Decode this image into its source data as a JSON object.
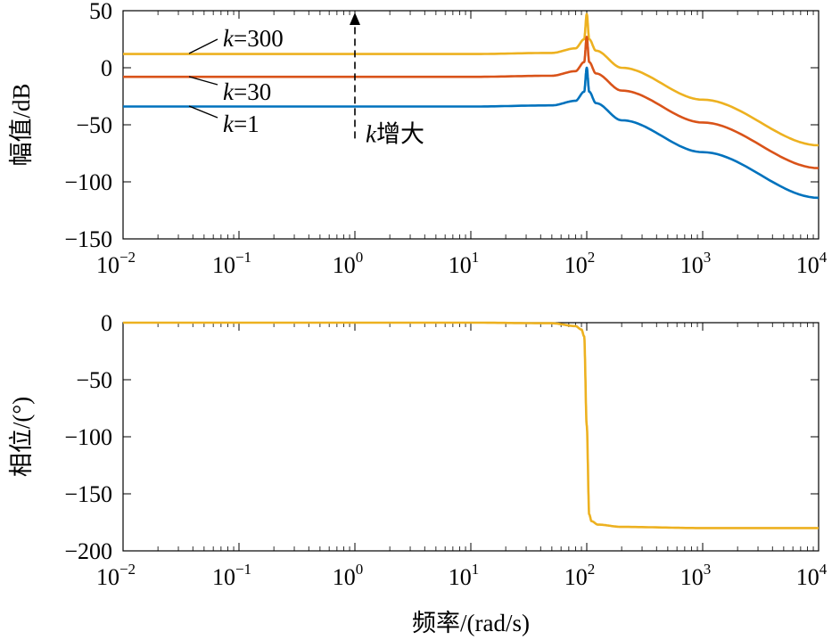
{
  "chart_data": [
    {
      "type": "line",
      "panel": "magnitude",
      "ylabel": "幅值/dB",
      "xscale": "log",
      "xlim": [
        0.01,
        10000
      ],
      "ylim": [
        -150,
        50
      ],
      "xticks": [
        {
          "value": 0.01,
          "base": "10",
          "exp": "−2"
        },
        {
          "value": 0.1,
          "base": "10",
          "exp": "−1"
        },
        {
          "value": 1,
          "base": "10",
          "exp": "0"
        },
        {
          "value": 10,
          "base": "10",
          "exp": "1"
        },
        {
          "value": 100,
          "base": "10",
          "exp": "2"
        },
        {
          "value": 1000,
          "base": "10",
          "exp": "3"
        },
        {
          "value": 10000,
          "base": "10",
          "exp": "4"
        }
      ],
      "yticks": [
        {
          "value": 50,
          "label": "50"
        },
        {
          "value": 0,
          "label": "0"
        },
        {
          "value": -50,
          "label": "−50"
        },
        {
          "value": -100,
          "label": "−100"
        },
        {
          "value": -150,
          "label": "−150"
        }
      ],
      "resonance_frequency": 100,
      "series": [
        {
          "name": "k=300",
          "k_symbol": "k",
          "k_value": "=300",
          "color": "#EDB120",
          "x": [
            0.01,
            1,
            10,
            50,
            80,
            95,
            100,
            105,
            120,
            200,
            1000,
            10000
          ],
          "y": [
            12,
            12,
            12,
            13,
            17,
            25,
            47,
            25,
            15,
            0,
            -28,
            -68
          ]
        },
        {
          "name": "k=30",
          "k_symbol": "k",
          "k_value": "=30",
          "color": "#D95319",
          "x": [
            0.01,
            1,
            10,
            50,
            80,
            95,
            100,
            105,
            120,
            200,
            1000,
            10000
          ],
          "y": [
            -8,
            -8,
            -8,
            -7,
            -3,
            5,
            27,
            5,
            -5,
            -20,
            -48,
            -88
          ]
        },
        {
          "name": "k=1",
          "k_symbol": "k",
          "k_value": "=1",
          "color": "#0072BD",
          "x": [
            0.01,
            1,
            10,
            50,
            80,
            95,
            100,
            105,
            120,
            200,
            1000,
            10000
          ],
          "y": [
            -34,
            -34,
            -34,
            -33,
            -29,
            -21,
            0,
            -21,
            -31,
            -46,
            -74,
            -114
          ]
        }
      ],
      "annotation": {
        "symbol": "k",
        "text": "增大",
        "x": 1,
        "y_from": -62,
        "y_to": 50
      }
    },
    {
      "type": "line",
      "panel": "phase",
      "ylabel": "相位/(°)",
      "xlabel": "频率/(rad/s)",
      "xscale": "log",
      "xlim": [
        0.01,
        10000
      ],
      "ylim": [
        -200,
        0
      ],
      "xticks": [
        {
          "value": 0.01,
          "base": "10",
          "exp": "−2"
        },
        {
          "value": 0.1,
          "base": "10",
          "exp": "−1"
        },
        {
          "value": 1,
          "base": "10",
          "exp": "0"
        },
        {
          "value": 10,
          "base": "10",
          "exp": "1"
        },
        {
          "value": 100,
          "base": "10",
          "exp": "2"
        },
        {
          "value": 1000,
          "base": "10",
          "exp": "3"
        },
        {
          "value": 10000,
          "base": "10",
          "exp": "4"
        }
      ],
      "yticks": [
        {
          "value": 0,
          "label": "0"
        },
        {
          "value": -50,
          "label": "−50"
        },
        {
          "value": -100,
          "label": "−100"
        },
        {
          "value": -150,
          "label": "−150"
        },
        {
          "value": -200,
          "label": "−200"
        }
      ],
      "series": [
        {
          "color": "#EDB120",
          "x": [
            0.01,
            1,
            10,
            50,
            80,
            90,
            95,
            100,
            105,
            110,
            125,
            200,
            1000,
            10000
          ],
          "y": [
            0,
            0,
            0,
            -0.5,
            -3,
            -6,
            -12,
            -90,
            -168,
            -174,
            -177,
            -179,
            -180,
            -180
          ]
        }
      ]
    }
  ]
}
